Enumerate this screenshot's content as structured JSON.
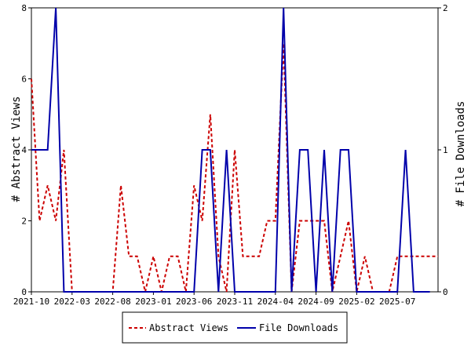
{
  "chart_data": {
    "type": "line",
    "x_tick_labels": [
      "2021-10",
      "2022-03",
      "2022-08",
      "2023-01",
      "2023-06",
      "2023-11",
      "2024-04",
      "2024-09",
      "2025-02",
      "2025-07"
    ],
    "x_start": "2021-10",
    "ylabel": "# Abstract Views",
    "y2label": "# File Downloads",
    "ylim": [
      0,
      8
    ],
    "y2lim": [
      0,
      2
    ],
    "y_ticks": [
      0,
      2,
      4,
      6,
      8
    ],
    "y2_ticks": [
      0,
      1,
      2
    ],
    "legend_position": "bottom",
    "series": [
      {
        "name": "Abstract Views",
        "axis": "left",
        "color": "#cc0000",
        "style": "dashed",
        "x": [
          0,
          1,
          2,
          3,
          4,
          5,
          6,
          7,
          8,
          9,
          10,
          11,
          12,
          13,
          14,
          15,
          16,
          17,
          18,
          19,
          20,
          21,
          22,
          23,
          24,
          25,
          26,
          27,
          28,
          29,
          30,
          31,
          32,
          33,
          34,
          35,
          36,
          37,
          38,
          39,
          40,
          41,
          42,
          43,
          44,
          45,
          46,
          47,
          48,
          49,
          50
        ],
        "values": [
          6,
          2,
          3,
          2,
          4,
          0,
          0,
          0,
          0,
          0,
          0,
          3,
          1,
          1,
          0,
          1,
          0,
          1,
          1,
          0,
          3,
          2,
          5,
          1,
          0,
          4,
          1,
          1,
          1,
          2,
          2,
          7,
          0,
          2,
          2,
          2,
          2,
          0,
          1,
          2,
          0,
          1,
          0,
          0,
          0,
          1,
          1,
          1,
          1,
          1,
          1
        ]
      },
      {
        "name": "File Downloads",
        "axis": "right",
        "color": "#0000aa",
        "style": "solid",
        "x": [
          0,
          2,
          3,
          4,
          5,
          20,
          21,
          22,
          23,
          24,
          25,
          26,
          30,
          31,
          32,
          33,
          34,
          35,
          36,
          37,
          38,
          39,
          40,
          41,
          42,
          43,
          44,
          45,
          46,
          47,
          48,
          49
        ],
        "values": [
          1,
          1,
          2,
          0,
          0,
          0,
          1,
          1,
          0,
          1,
          0,
          0,
          0,
          2,
          0,
          1,
          1,
          0,
          1,
          0,
          1,
          1,
          0,
          0,
          0,
          0,
          0,
          0,
          1,
          0,
          0,
          0
        ]
      }
    ]
  }
}
